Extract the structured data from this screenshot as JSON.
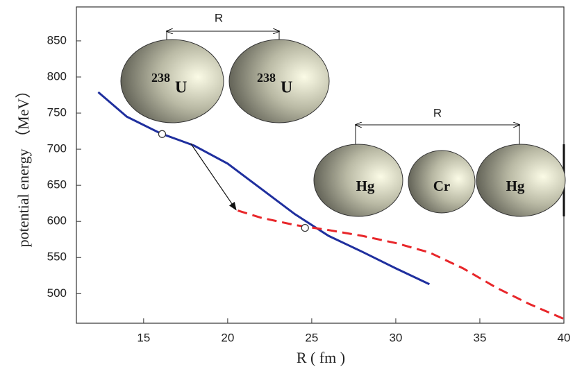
{
  "chart_data": {
    "type": "line",
    "xlabel": "R ( fm )",
    "ylabel": "potential energy （MeV）",
    "xlim": [
      11,
      40
    ],
    "ylim": [
      459,
      897
    ],
    "xticks": [
      15,
      20,
      25,
      30,
      35,
      40
    ],
    "yticks": [
      500,
      550,
      600,
      650,
      700,
      750,
      800,
      850
    ],
    "series": [
      {
        "color": "#1f2f9e",
        "dash": false,
        "x": [
          12.3,
          14,
          16,
          18,
          20,
          22,
          24,
          26,
          28,
          30,
          32
        ],
        "values": [
          779,
          745,
          722,
          705,
          680,
          645,
          610,
          580,
          558,
          535,
          513
        ]
      },
      {
        "color": "#e8262a",
        "dash": true,
        "x": [
          20.6,
          22,
          24,
          26,
          28,
          30,
          32,
          34,
          36,
          38,
          40
        ],
        "values": [
          615,
          605,
          595,
          588,
          580,
          570,
          557,
          535,
          508,
          485,
          465
        ]
      }
    ],
    "markers": [
      {
        "x": 16.1,
        "y": 721
      },
      {
        "x": 24.6,
        "y": 591
      }
    ],
    "arrow": {
      "from": [
        17.8,
        708
      ],
      "to": [
        20.5,
        616
      ]
    },
    "annotations": {
      "r1": "R",
      "u1_mass": "238",
      "u1": "U",
      "u2_mass": "238",
      "u2": "U",
      "r2": "R",
      "hg1": "Hg",
      "cr": "Cr",
      "hg2": "Hg"
    }
  }
}
